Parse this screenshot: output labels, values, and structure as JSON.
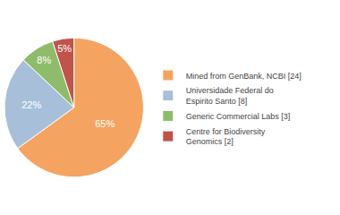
{
  "chart_data": {
    "type": "pie",
    "categories": [
      "Mined from GenBank, NCBI [24]",
      "Universidade Federal do\nEspirito Santo [8]",
      "Generic Commercial Labs [3]",
      "Centre for Biodiversity\nGenomics [2]"
    ],
    "values": [
      65,
      22,
      8,
      5
    ],
    "value_labels": [
      "65%",
      "22%",
      "8%",
      "5%"
    ],
    "colors": [
      "#F4A460",
      "#A8BFDA",
      "#8FBC6A",
      "#C0534A"
    ],
    "data_labels": true,
    "legend": "right"
  }
}
